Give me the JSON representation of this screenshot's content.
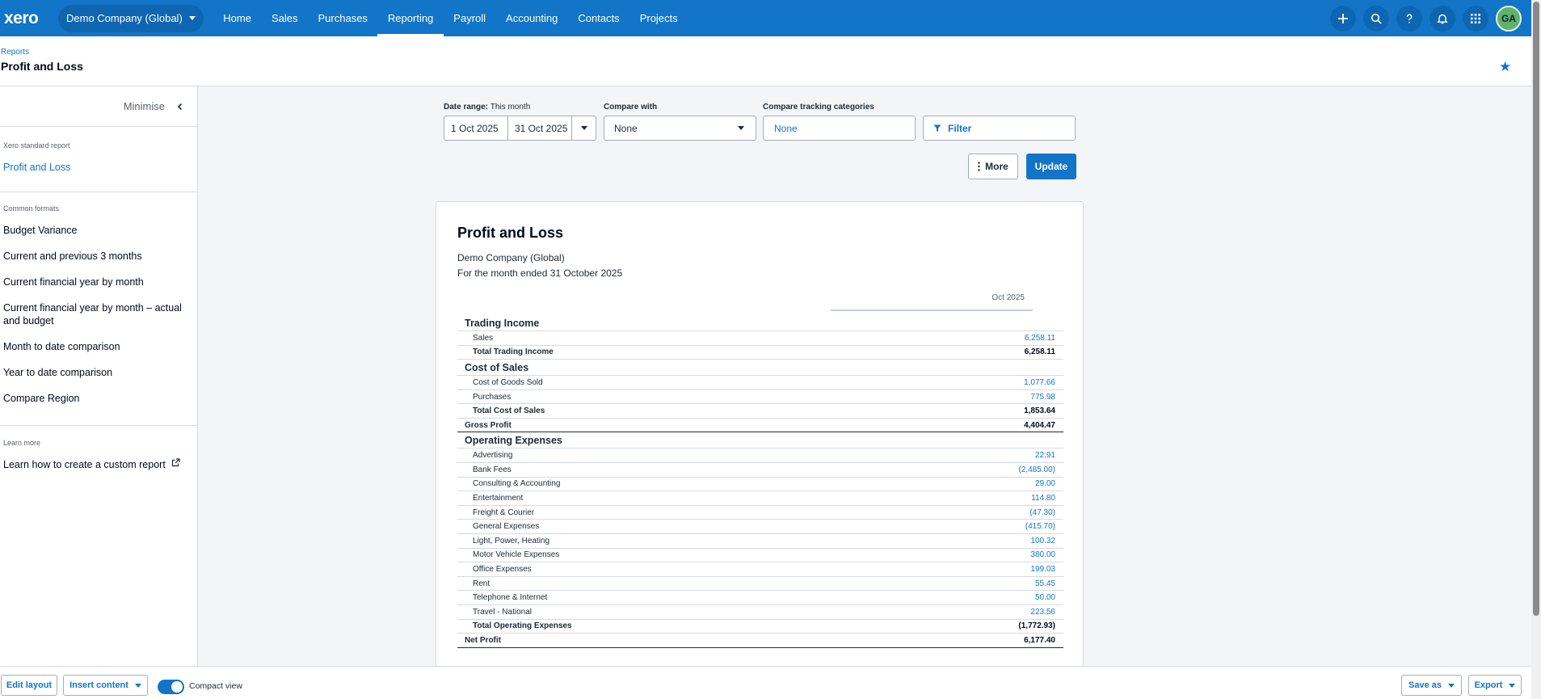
{
  "topnav": {
    "logo": "xero",
    "org": "Demo Company (Global)",
    "items": [
      "Home",
      "Sales",
      "Purchases",
      "Reporting",
      "Payroll",
      "Accounting",
      "Contacts",
      "Projects"
    ],
    "active": "Reporting",
    "avatar": "GA",
    "icons": [
      "plus-icon",
      "search-icon",
      "help-icon",
      "bell-icon",
      "apps-grid-icon"
    ]
  },
  "header": {
    "breadcrumb": "Reports",
    "title": "Profit and Loss"
  },
  "sidebar": {
    "minimise": "Minimise",
    "standard_head": "Xero standard report",
    "standard_item": "Profit and Loss",
    "formats_head": "Common formats",
    "formats": [
      "Budget Variance",
      "Current and previous 3 months",
      "Current financial year by month",
      "Current financial year by month – actual and budget",
      "Month to date comparison",
      "Year to date comparison",
      "Compare Region"
    ],
    "learn_head": "Learn more",
    "learn_item": "Learn how to create a custom report"
  },
  "controls": {
    "date_range_label": "Date range:",
    "date_range_value": "This month",
    "from": "1 Oct 2025",
    "to": "31 Oct 2025",
    "compare_label": "Compare with",
    "compare_value": "None",
    "tracking_label": "Compare tracking categories",
    "tracking_value": "None",
    "filter": "Filter",
    "more": "More",
    "update": "Update"
  },
  "report": {
    "title": "Profit and Loss",
    "org": "Demo Company (Global)",
    "period": "For the month ended 31 October 2025",
    "column": "Oct 2025",
    "rows": [
      {
        "kind": "section",
        "name": "Trading Income",
        "value": ""
      },
      {
        "kind": "line",
        "name": "Sales",
        "value": "6,258.11"
      },
      {
        "kind": "total",
        "name": "Total Trading Income",
        "value": "6,258.11"
      },
      {
        "kind": "section",
        "name": "Cost of Sales",
        "value": ""
      },
      {
        "kind": "line",
        "name": "Cost of Goods Sold",
        "value": "1,077.66"
      },
      {
        "kind": "line",
        "name": "Purchases",
        "value": "775.98"
      },
      {
        "kind": "total",
        "name": "Total Cost of Sales",
        "value": "1,853.64"
      },
      {
        "kind": "grand",
        "name": "Gross Profit",
        "value": "4,404.47"
      },
      {
        "kind": "section",
        "name": "Operating Expenses",
        "value": ""
      },
      {
        "kind": "line",
        "name": "Advertising",
        "value": "22.91"
      },
      {
        "kind": "line",
        "name": "Bank Fees",
        "value": "(2,485.00)"
      },
      {
        "kind": "line",
        "name": "Consulting & Accounting",
        "value": "29.00"
      },
      {
        "kind": "line",
        "name": "Entertainment",
        "value": "114.80"
      },
      {
        "kind": "line",
        "name": "Freight & Courier",
        "value": "(47.30)"
      },
      {
        "kind": "line",
        "name": "General Expenses",
        "value": "(415.70)"
      },
      {
        "kind": "line",
        "name": "Light, Power, Heating",
        "value": "100.32"
      },
      {
        "kind": "line",
        "name": "Motor Vehicle Expenses",
        "value": "380.00"
      },
      {
        "kind": "line",
        "name": "Office Expenses",
        "value": "199.03"
      },
      {
        "kind": "line",
        "name": "Rent",
        "value": "55.45"
      },
      {
        "kind": "line",
        "name": "Telephone & Internet",
        "value": "50.00"
      },
      {
        "kind": "line",
        "name": "Travel - National",
        "value": "223.56"
      },
      {
        "kind": "total",
        "name": "Total Operating Expenses",
        "value": "(1,772.93)"
      },
      {
        "kind": "grand",
        "name": "Net Profit",
        "value": "6,177.40"
      }
    ]
  },
  "bottombar": {
    "edit_layout": "Edit layout",
    "insert_content": "Insert content",
    "compact_view": "Compact view",
    "save_as": "Save as",
    "export": "Export"
  }
}
